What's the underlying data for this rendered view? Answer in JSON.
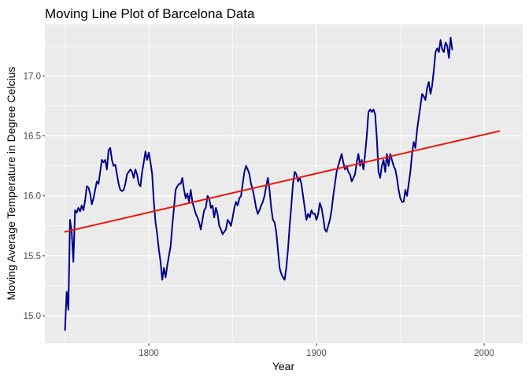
{
  "chart_data": {
    "type": "line",
    "title": "Moving Line Plot of Barcelona Data",
    "xlabel": "Year",
    "ylabel": "Moving Average Temperature in Degree Celcius",
    "xlim": [
      1738,
      2023
    ],
    "ylim": [
      14.77,
      17.43
    ],
    "x_ticks": [
      1800,
      1900,
      2000
    ],
    "x_minor_ticks": [
      1750,
      1850,
      1950
    ],
    "y_ticks": [
      15.0,
      15.5,
      16.0,
      16.5,
      17.0
    ],
    "y_minor_ticks": [
      15.25,
      15.75,
      16.25,
      16.75,
      17.25
    ],
    "grid": true,
    "background": "#ebebeb",
    "series": [
      {
        "color": "#00008b",
        "points": [
          [
            1750,
            14.88
          ],
          [
            1751,
            15.2
          ],
          [
            1752,
            15.05
          ],
          [
            1753,
            15.8
          ],
          [
            1754,
            15.7
          ],
          [
            1755,
            15.45
          ],
          [
            1756,
            15.88
          ],
          [
            1757,
            15.86
          ],
          [
            1758,
            15.9
          ],
          [
            1759,
            15.87
          ],
          [
            1760,
            15.92
          ],
          [
            1761,
            15.88
          ],
          [
            1762,
            15.96
          ],
          [
            1763,
            16.08
          ],
          [
            1764,
            16.07
          ],
          [
            1765,
            16.02
          ],
          [
            1766,
            15.93
          ],
          [
            1767,
            15.98
          ],
          [
            1768,
            16.05
          ],
          [
            1769,
            16.12
          ],
          [
            1770,
            16.1
          ],
          [
            1771,
            16.2
          ],
          [
            1772,
            16.3
          ],
          [
            1773,
            16.28
          ],
          [
            1774,
            16.3
          ],
          [
            1775,
            16.22
          ],
          [
            1776,
            16.38
          ],
          [
            1777,
            16.4
          ],
          [
            1778,
            16.3
          ],
          [
            1779,
            16.25
          ],
          [
            1780,
            16.26
          ],
          [
            1781,
            16.18
          ],
          [
            1782,
            16.1
          ],
          [
            1783,
            16.05
          ],
          [
            1784,
            16.04
          ],
          [
            1785,
            16.05
          ],
          [
            1786,
            16.1
          ],
          [
            1787,
            16.18
          ],
          [
            1788,
            16.2
          ],
          [
            1789,
            16.22
          ],
          [
            1790,
            16.2
          ],
          [
            1791,
            16.15
          ],
          [
            1792,
            16.22
          ],
          [
            1793,
            16.18
          ],
          [
            1794,
            16.1
          ],
          [
            1795,
            16.08
          ],
          [
            1796,
            16.2
          ],
          [
            1797,
            16.28
          ],
          [
            1798,
            16.37
          ],
          [
            1799,
            16.3
          ],
          [
            1800,
            16.36
          ],
          [
            1801,
            16.28
          ],
          [
            1802,
            16.18
          ],
          [
            1803,
            15.95
          ],
          [
            1804,
            15.78
          ],
          [
            1805,
            15.68
          ],
          [
            1806,
            15.55
          ],
          [
            1807,
            15.45
          ],
          [
            1808,
            15.3
          ],
          [
            1809,
            15.4
          ],
          [
            1810,
            15.32
          ],
          [
            1811,
            15.42
          ],
          [
            1812,
            15.5
          ],
          [
            1813,
            15.58
          ],
          [
            1814,
            15.75
          ],
          [
            1815,
            15.9
          ],
          [
            1816,
            16.05
          ],
          [
            1817,
            16.08
          ],
          [
            1818,
            16.1
          ],
          [
            1819,
            16.1
          ],
          [
            1820,
            16.15
          ],
          [
            1821,
            16.05
          ],
          [
            1822,
            15.98
          ],
          [
            1823,
            16.02
          ],
          [
            1824,
            15.95
          ],
          [
            1825,
            16.05
          ],
          [
            1826,
            15.95
          ],
          [
            1827,
            15.9
          ],
          [
            1828,
            15.85
          ],
          [
            1829,
            15.82
          ],
          [
            1830,
            15.78
          ],
          [
            1831,
            15.72
          ],
          [
            1832,
            15.8
          ],
          [
            1833,
            15.88
          ],
          [
            1834,
            15.9
          ],
          [
            1835,
            16.0
          ],
          [
            1836,
            15.98
          ],
          [
            1837,
            15.9
          ],
          [
            1838,
            15.92
          ],
          [
            1839,
            15.82
          ],
          [
            1840,
            15.9
          ],
          [
            1841,
            15.85
          ],
          [
            1842,
            15.75
          ],
          [
            1843,
            15.72
          ],
          [
            1844,
            15.68
          ],
          [
            1845,
            15.7
          ],
          [
            1846,
            15.72
          ],
          [
            1847,
            15.8
          ],
          [
            1848,
            15.78
          ],
          [
            1849,
            15.75
          ],
          [
            1850,
            15.82
          ],
          [
            1851,
            15.9
          ],
          [
            1852,
            15.95
          ],
          [
            1853,
            15.92
          ],
          [
            1854,
            15.98
          ],
          [
            1855,
            16.0
          ],
          [
            1856,
            16.1
          ],
          [
            1857,
            16.2
          ],
          [
            1858,
            16.25
          ],
          [
            1859,
            16.22
          ],
          [
            1860,
            16.18
          ],
          [
            1861,
            16.1
          ],
          [
            1862,
            16.05
          ],
          [
            1863,
            15.98
          ],
          [
            1864,
            15.9
          ],
          [
            1865,
            15.85
          ],
          [
            1866,
            15.88
          ],
          [
            1867,
            15.92
          ],
          [
            1868,
            15.95
          ],
          [
            1869,
            16.0
          ],
          [
            1870,
            16.08
          ],
          [
            1871,
            16.15
          ],
          [
            1872,
            16.05
          ],
          [
            1873,
            15.9
          ],
          [
            1874,
            15.8
          ],
          [
            1875,
            15.78
          ],
          [
            1876,
            15.7
          ],
          [
            1877,
            15.55
          ],
          [
            1878,
            15.4
          ],
          [
            1879,
            15.35
          ],
          [
            1880,
            15.32
          ],
          [
            1881,
            15.3
          ],
          [
            1882,
            15.4
          ],
          [
            1883,
            15.55
          ],
          [
            1884,
            15.75
          ],
          [
            1885,
            15.92
          ],
          [
            1886,
            16.1
          ],
          [
            1887,
            16.2
          ],
          [
            1888,
            16.18
          ],
          [
            1889,
            16.12
          ],
          [
            1890,
            16.15
          ],
          [
            1891,
            16.1
          ],
          [
            1892,
            16.0
          ],
          [
            1893,
            15.9
          ],
          [
            1894,
            15.8
          ],
          [
            1895,
            15.85
          ],
          [
            1896,
            15.82
          ],
          [
            1897,
            15.88
          ],
          [
            1898,
            15.85
          ],
          [
            1899,
            15.85
          ],
          [
            1900,
            15.8
          ],
          [
            1901,
            15.85
          ],
          [
            1902,
            15.94
          ],
          [
            1903,
            15.9
          ],
          [
            1904,
            15.82
          ],
          [
            1905,
            15.72
          ],
          [
            1906,
            15.7
          ],
          [
            1907,
            15.75
          ],
          [
            1908,
            15.8
          ],
          [
            1909,
            15.88
          ],
          [
            1910,
            16.0
          ],
          [
            1911,
            16.1
          ],
          [
            1912,
            16.2
          ],
          [
            1913,
            16.25
          ],
          [
            1914,
            16.3
          ],
          [
            1915,
            16.35
          ],
          [
            1916,
            16.28
          ],
          [
            1917,
            16.22
          ],
          [
            1918,
            16.25
          ],
          [
            1919,
            16.2
          ],
          [
            1920,
            16.18
          ],
          [
            1921,
            16.12
          ],
          [
            1922,
            16.15
          ],
          [
            1923,
            16.18
          ],
          [
            1924,
            16.28
          ],
          [
            1925,
            16.35
          ],
          [
            1926,
            16.25
          ],
          [
            1927,
            16.3
          ],
          [
            1928,
            16.22
          ],
          [
            1929,
            16.35
          ],
          [
            1930,
            16.5
          ],
          [
            1931,
            16.7
          ],
          [
            1932,
            16.72
          ],
          [
            1933,
            16.7
          ],
          [
            1934,
            16.72
          ],
          [
            1935,
            16.68
          ],
          [
            1936,
            16.48
          ],
          [
            1937,
            16.2
          ],
          [
            1938,
            16.15
          ],
          [
            1939,
            16.25
          ],
          [
            1940,
            16.3
          ],
          [
            1941,
            16.2
          ],
          [
            1942,
            16.35
          ],
          [
            1943,
            16.25
          ],
          [
            1944,
            16.35
          ],
          [
            1945,
            16.3
          ],
          [
            1946,
            16.25
          ],
          [
            1947,
            16.22
          ],
          [
            1948,
            16.15
          ],
          [
            1949,
            16.05
          ],
          [
            1950,
            15.98
          ],
          [
            1951,
            15.95
          ],
          [
            1952,
            15.95
          ],
          [
            1953,
            16.05
          ],
          [
            1954,
            16.0
          ],
          [
            1955,
            16.1
          ],
          [
            1956,
            16.2
          ],
          [
            1957,
            16.35
          ],
          [
            1958,
            16.45
          ],
          [
            1959,
            16.4
          ],
          [
            1960,
            16.55
          ],
          [
            1961,
            16.65
          ],
          [
            1962,
            16.75
          ],
          [
            1963,
            16.85
          ],
          [
            1964,
            16.83
          ],
          [
            1965,
            16.8
          ],
          [
            1966,
            16.9
          ],
          [
            1967,
            16.95
          ],
          [
            1968,
            16.85
          ],
          [
            1969,
            16.92
          ],
          [
            1970,
            17.05
          ],
          [
            1971,
            17.2
          ],
          [
            1972,
            17.23
          ],
          [
            1973,
            17.2
          ],
          [
            1974,
            17.3
          ],
          [
            1975,
            17.22
          ],
          [
            1976,
            17.2
          ],
          [
            1977,
            17.28
          ],
          [
            1978,
            17.25
          ],
          [
            1979,
            17.15
          ],
          [
            1980,
            17.32
          ],
          [
            1981,
            17.22
          ]
        ]
      },
      {
        "color": "#e8180c",
        "points": [
          [
            1750,
            15.7
          ],
          [
            2009,
            16.54
          ]
        ]
      }
    ]
  }
}
